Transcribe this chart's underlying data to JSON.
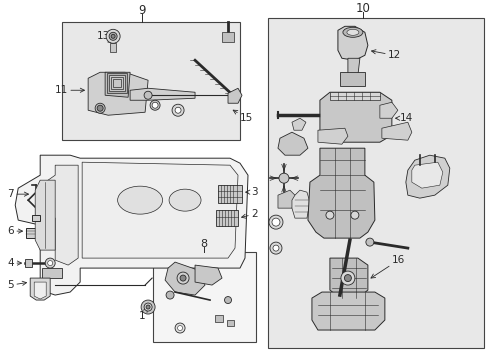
{
  "bg_color": "#ffffff",
  "shaded_bg": "#e8e8e8",
  "line_color": "#2a2a2a",
  "box_edge_color": "#444444",
  "label_color": "#111111",
  "fig_width": 4.89,
  "fig_height": 3.6,
  "dpi": 100,
  "part_labels": {
    "1": [
      148,
      300,
      162,
      295
    ],
    "2": [
      229,
      213,
      222,
      213
    ],
    "3": [
      229,
      195,
      222,
      195
    ],
    "4": [
      22,
      265,
      30,
      265
    ],
    "5": [
      22,
      285,
      30,
      285
    ],
    "6": [
      22,
      232,
      32,
      232
    ],
    "7": [
      22,
      196,
      30,
      196
    ],
    "8": [
      183,
      248,
      183,
      255
    ],
    "9": [
      142,
      12,
      142,
      18
    ],
    "10": [
      363,
      12,
      363,
      18
    ],
    "11": [
      78,
      90,
      88,
      90
    ],
    "12": [
      392,
      60,
      383,
      65
    ],
    "13": [
      121,
      42,
      126,
      55
    ],
    "14": [
      402,
      120,
      392,
      120
    ],
    "15": [
      218,
      115,
      210,
      108
    ],
    "16": [
      392,
      255,
      375,
      248
    ]
  },
  "box9": [
    62,
    22,
    240,
    22,
    240,
    140,
    62,
    140
  ],
  "box10": [
    268,
    22,
    484,
    22,
    484,
    348,
    268,
    348
  ],
  "box8": [
    153,
    248,
    255,
    248,
    255,
    340,
    153,
    340
  ]
}
